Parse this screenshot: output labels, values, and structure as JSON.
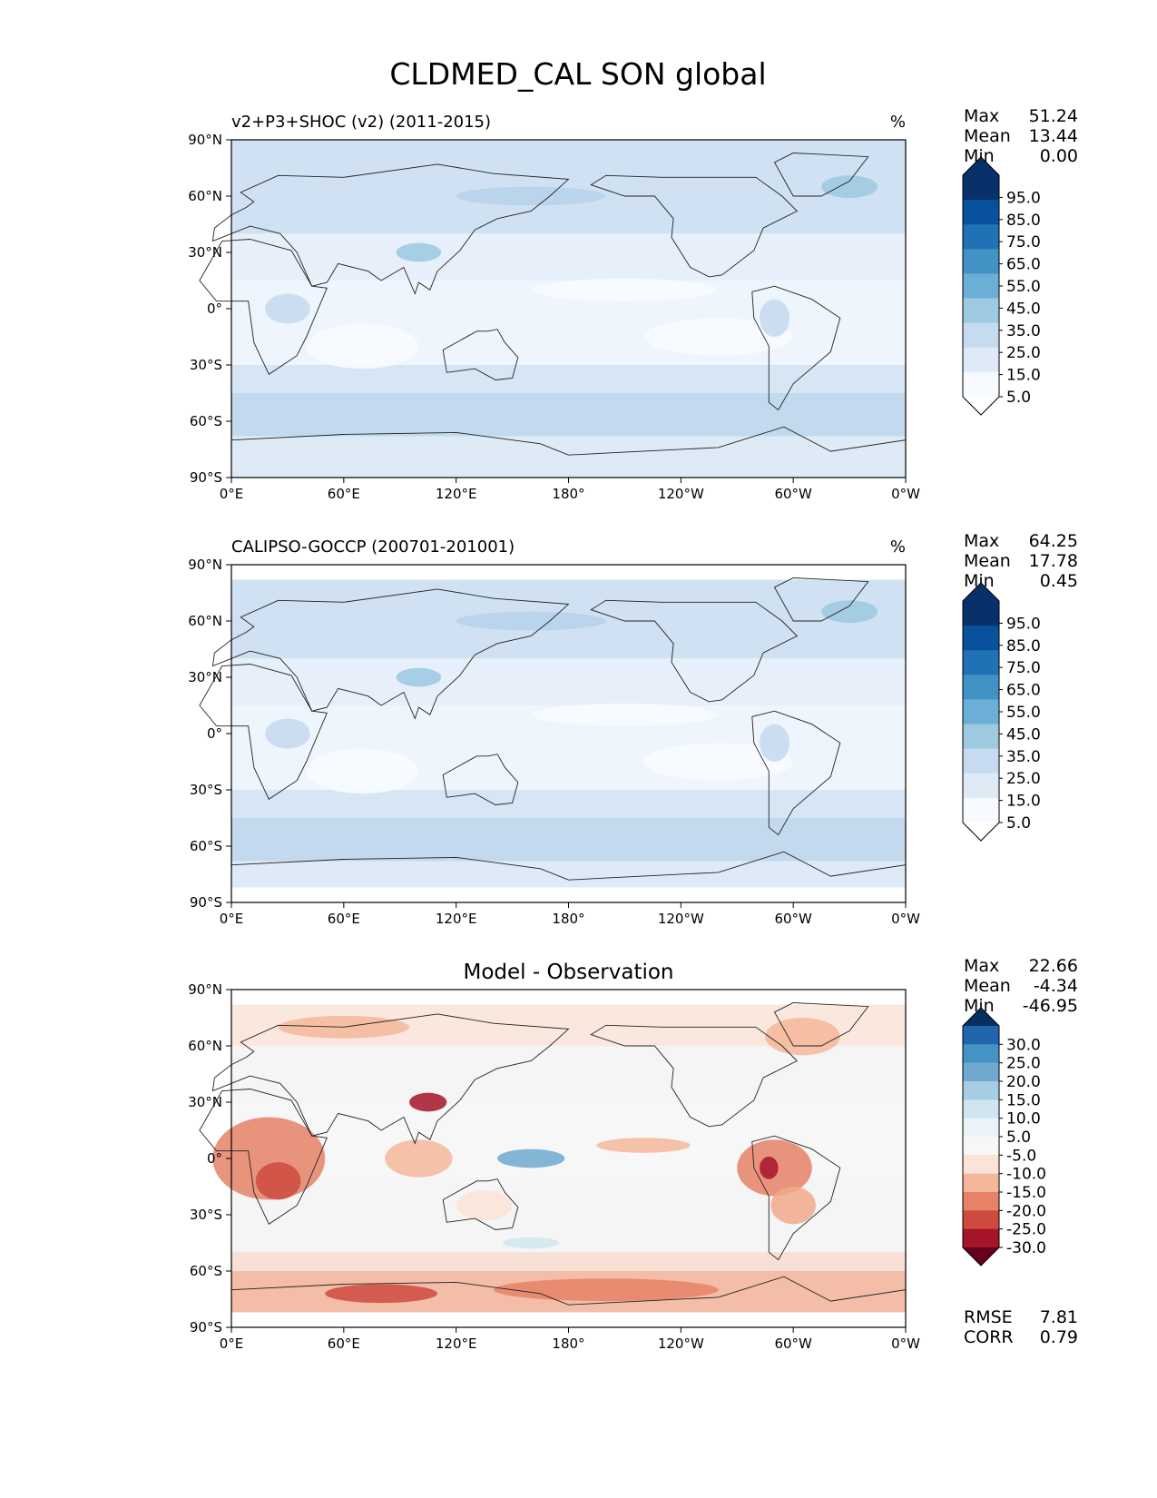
{
  "chart_data": {
    "type": "heatmap",
    "title": "CLDMED_CAL SON global",
    "panels": [
      {
        "kind": "model",
        "title_left": "v2+P3+SHOC (v2) (2011-2015)",
        "title_right": "%",
        "title_center": "",
        "stats": [
          {
            "label": "Max",
            "value": "51.24"
          },
          {
            "label": "Mean",
            "value": "13.44"
          },
          {
            "label": "Min",
            "value": "0.00"
          }
        ],
        "colorbar": {
          "levels": [
            "95.0",
            "85.0",
            "75.0",
            "65.0",
            "55.0",
            "45.0",
            "35.0",
            "25.0",
            "15.0",
            "5.0"
          ],
          "colors": [
            "#08306b",
            "#08519c",
            "#2171b5",
            "#4292c6",
            "#6baed6",
            "#9ecae1",
            "#c6dbef",
            "#deebf7",
            "#f7fbff"
          ],
          "extend_top": "#08306b",
          "extend_bottom": "#ffffff"
        },
        "yticks": [
          "90°N",
          "60°N",
          "30°N",
          "0°",
          "30°S",
          "60°S",
          "90°S"
        ],
        "xticks": [
          "0°E",
          "60°E",
          "120°E",
          "180°",
          "120°W",
          "60°W",
          "0°W"
        ],
        "lat_range": [
          -90,
          90
        ],
        "lon_range": [
          0,
          360
        ]
      },
      {
        "kind": "observation",
        "title_left": "CALIPSO-GOCCP (200701-201001)",
        "title_right": "%",
        "title_center": "",
        "stats": [
          {
            "label": "Max",
            "value": "64.25"
          },
          {
            "label": "Mean",
            "value": "17.78"
          },
          {
            "label": "Min",
            "value": "0.45"
          }
        ],
        "colorbar": {
          "levels": [
            "95.0",
            "85.0",
            "75.0",
            "65.0",
            "55.0",
            "45.0",
            "35.0",
            "25.0",
            "15.0",
            "5.0"
          ],
          "colors": [
            "#08306b",
            "#08519c",
            "#2171b5",
            "#4292c6",
            "#6baed6",
            "#9ecae1",
            "#c6dbef",
            "#deebf7",
            "#f7fbff"
          ],
          "extend_top": "#08306b",
          "extend_bottom": "#ffffff"
        },
        "yticks": [
          "90°N",
          "60°N",
          "30°N",
          "0°",
          "30°S",
          "60°S",
          "90°S"
        ],
        "xticks": [
          "0°E",
          "60°E",
          "120°E",
          "180°",
          "120°W",
          "60°W",
          "0°W"
        ],
        "lat_range": [
          -90,
          90
        ],
        "lon_range": [
          0,
          360
        ]
      },
      {
        "kind": "difference",
        "title_left": "",
        "title_right": "",
        "title_center": "Model - Observation",
        "stats": [
          {
            "label": "Max",
            "value": "22.66"
          },
          {
            "label": "Mean",
            "value": "-4.34"
          },
          {
            "label": "Min",
            "value": "-46.95"
          }
        ],
        "metrics": [
          {
            "label": "RMSE",
            "value": "7.81"
          },
          {
            "label": "CORR",
            "value": "0.79"
          }
        ],
        "colorbar": {
          "levels": [
            "30.0",
            "25.0",
            "20.0",
            "15.0",
            "10.0",
            "5.0",
            "-5.0",
            "-10.0",
            "-15.0",
            "-20.0",
            "-25.0",
            "-30.0"
          ],
          "colors": [
            "#2166ac",
            "#4393c3",
            "#6fa9d0",
            "#a6cde3",
            "#d1e5f0",
            "#ebf3f8",
            "#f7f7f7",
            "#fbe3d7",
            "#f4b79a",
            "#e58267",
            "#cc4a3f",
            "#a51429"
          ],
          "extend_top": "#053061",
          "extend_bottom": "#67001f"
        },
        "yticks": [
          "90°N",
          "60°N",
          "30°N",
          "0°",
          "30°S",
          "60°S",
          "90°S"
        ],
        "xticks": [
          "0°E",
          "60°E",
          "120°E",
          "180°",
          "120°W",
          "60°W",
          "0°W"
        ],
        "lat_range": [
          -90,
          90
        ],
        "lon_range": [
          0,
          360
        ]
      }
    ]
  }
}
